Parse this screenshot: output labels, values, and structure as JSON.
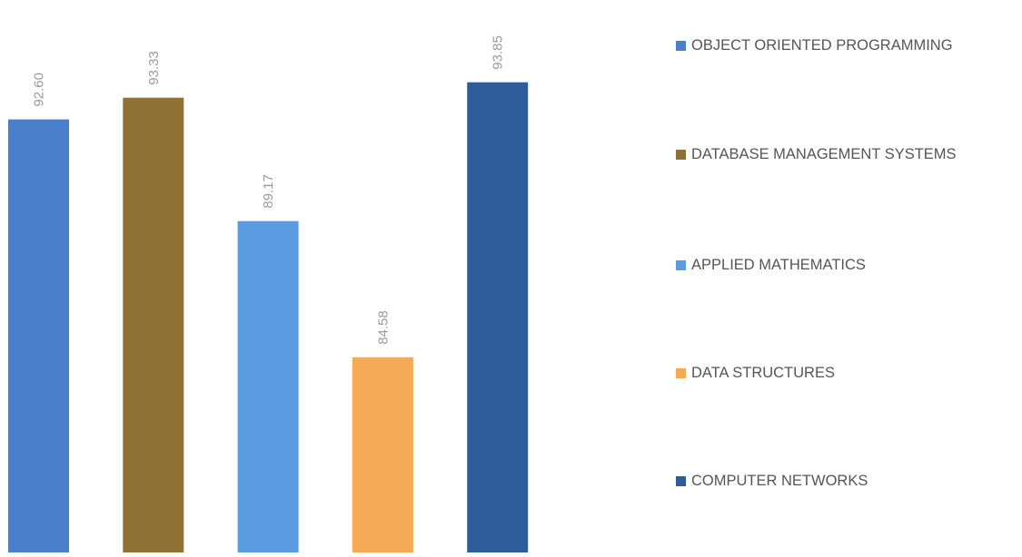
{
  "chart_data": {
    "type": "bar",
    "categories": [
      "OBJECT ORIENTED PROGRAMMING",
      "DATABASE MANAGEMENT SYSTEMS",
      "APPLIED MATHEMATICS",
      "DATA STRUCTURES",
      "COMPUTER NETWORKS"
    ],
    "series": [
      {
        "values": [
          92.6,
          93.33,
          89.17,
          84.58,
          93.85
        ]
      }
    ],
    "data_labels": [
      "92.60",
      "93.33",
      "89.17",
      "84.58",
      "93.85"
    ],
    "colors": [
      "#4a7fcc",
      "#8f7135",
      "#5b9be0",
      "#f5aa55",
      "#2e5c9a"
    ],
    "title": "",
    "xlabel": "",
    "ylabel": "",
    "ylim": [
      78,
      95.4
    ],
    "grid": false,
    "legend": {
      "position": "right",
      "items": [
        {
          "label": "OBJECT ORIENTED PROGRAMMING",
          "color": "#4a7fcc"
        },
        {
          "label": "DATABASE MANAGEMENT SYSTEMS",
          "color": "#8f7135"
        },
        {
          "label": "APPLIED MATHEMATICS",
          "color": "#5b9be0"
        },
        {
          "label": "DATA STRUCTURES",
          "color": "#f5aa55"
        },
        {
          "label": "COMPUTER NETWORKS",
          "color": "#2e5c9a"
        }
      ]
    }
  }
}
